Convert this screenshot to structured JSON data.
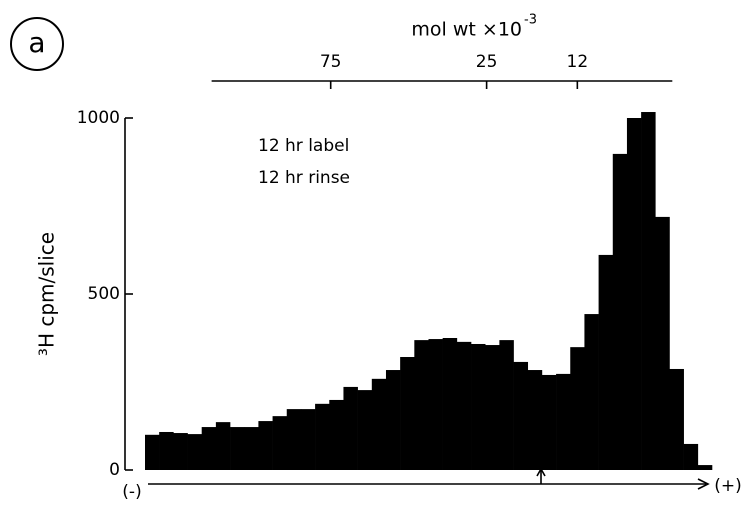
{
  "chart_data": {
    "type": "histogram",
    "panel_label": "a",
    "ylabel": "³H cpm/slice",
    "annotations": [
      "12 hr label",
      "12 hr rinse"
    ],
    "x_left_label": "(-)",
    "x_right_label": "(+)",
    "bins": [
      0,
      1,
      2,
      3,
      4,
      5,
      6,
      7,
      8,
      9,
      10,
      11,
      12,
      13,
      14,
      15,
      16,
      17,
      18,
      19,
      20,
      21,
      22,
      23,
      24,
      25,
      26,
      27,
      28,
      29,
      30,
      31,
      32,
      33,
      34,
      35,
      36,
      37,
      38,
      39,
      40
    ],
    "values": [
      100,
      108,
      105,
      102,
      122,
      136,
      122,
      122,
      139,
      153,
      173,
      173,
      188,
      199,
      236,
      227,
      259,
      284,
      321,
      369,
      372,
      375,
      364,
      358,
      355,
      369,
      307,
      284,
      270,
      273,
      349,
      443,
      611,
      898,
      1000,
      1017,
      719,
      287,
      74,
      14
    ],
    "color": "#000000",
    "xlim": [
      0,
      40
    ],
    "ylim": [
      0,
      1000
    ],
    "yticks": [
      0,
      500,
      1000
    ],
    "top_axis": {
      "label": "mol wt ×10",
      "label_exponent": "-3",
      "lim": [
        4.7,
        37.2
      ],
      "ticks": [
        {
          "value": 13.1,
          "label": "75"
        },
        {
          "value": 24.1,
          "label": "25"
        },
        {
          "value": 30.5,
          "label": "12"
        }
      ]
    }
  }
}
